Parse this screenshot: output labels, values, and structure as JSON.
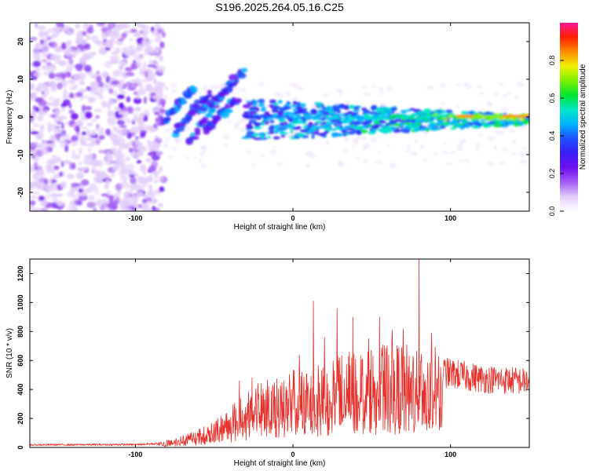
{
  "title": "S196.2025.264.05.16.C25",
  "colors": {
    "snr_line": "#e8302a",
    "colormap": [
      "#ffffff",
      "#e2cdfa",
      "#a35cf5",
      "#6e10f0",
      "#3a1ff5",
      "#2050ff",
      "#00b4ff",
      "#00e6c8",
      "#00e632",
      "#7cf000",
      "#f0f000",
      "#ff8c00",
      "#ff2000",
      "#ff1493"
    ]
  },
  "chart_data": [
    {
      "type": "heatmap",
      "name": "spectrogram",
      "xlabel": "Height of straight line (km)",
      "ylabel": "Frequency (Hz)",
      "xlim": [
        -167,
        150
      ],
      "ylim": [
        -25,
        25
      ],
      "x_ticks": [
        -100,
        0,
        100
      ],
      "x_tick_labels": [
        "-100",
        "0",
        "100"
      ],
      "y_ticks": [
        -20,
        -10,
        0,
        10,
        20
      ],
      "y_tick_labels": [
        "-20",
        "-10",
        "0",
        "10",
        "20"
      ],
      "colorbar": {
        "label": "Normalized spectral amplitude",
        "range": [
          0,
          1
        ],
        "ticks": [
          0.0,
          0.2,
          0.4,
          0.6,
          0.8
        ],
        "tick_labels": [
          "0.0",
          "0.2",
          "0.4",
          "0.6",
          "0.8"
        ]
      },
      "features": {
        "noise_region_x": [
          -167,
          -82
        ],
        "transition_x": [
          -82,
          -30
        ],
        "signal_band_x": [
          -30,
          150
        ],
        "signal_center_freq_hz": 0,
        "peak_amplitude_x": [
          105,
          148
        ]
      }
    },
    {
      "type": "line",
      "name": "snr",
      "xlabel": "Height of straight line (km)",
      "ylabel": "SNR (10 * v/v)",
      "xlim": [
        -167,
        150
      ],
      "ylim": [
        0,
        1300
      ],
      "x_ticks": [
        -100,
        0,
        100
      ],
      "x_tick_labels": [
        "-100",
        "0",
        "100"
      ],
      "y_ticks": [
        0,
        200,
        400,
        600,
        800,
        1000,
        1200
      ],
      "y_tick_labels": [
        "0",
        "200",
        "400",
        "600",
        "800",
        "1000",
        "1200"
      ],
      "envelope": [
        {
          "x": -167,
          "y": 20
        },
        {
          "x": -100,
          "y": 22
        },
        {
          "x": -85,
          "y": 30
        },
        {
          "x": -70,
          "y": 70
        },
        {
          "x": -60,
          "y": 110
        },
        {
          "x": -50,
          "y": 160
        },
        {
          "x": -40,
          "y": 230
        },
        {
          "x": -30,
          "y": 330
        },
        {
          "x": -20,
          "y": 380
        },
        {
          "x": 0,
          "y": 450
        },
        {
          "x": 20,
          "y": 520
        },
        {
          "x": 40,
          "y": 560
        },
        {
          "x": 60,
          "y": 600
        },
        {
          "x": 80,
          "y": 600
        },
        {
          "x": 100,
          "y": 560
        },
        {
          "x": 120,
          "y": 520
        },
        {
          "x": 150,
          "y": 500
        }
      ],
      "spikes": [
        {
          "x": -34,
          "y": 460
        },
        {
          "x": -26,
          "y": 480
        },
        {
          "x": -13,
          "y": 430
        },
        {
          "x": 4,
          "y": 640
        },
        {
          "x": 13,
          "y": 1010
        },
        {
          "x": 20,
          "y": 760
        },
        {
          "x": 28,
          "y": 960
        },
        {
          "x": 38,
          "y": 900
        },
        {
          "x": 48,
          "y": 750
        },
        {
          "x": 55,
          "y": 900
        },
        {
          "x": 63,
          "y": 810
        },
        {
          "x": 70,
          "y": 820
        },
        {
          "x": 80,
          "y": 1300
        },
        {
          "x": 88,
          "y": 790
        }
      ]
    }
  ]
}
